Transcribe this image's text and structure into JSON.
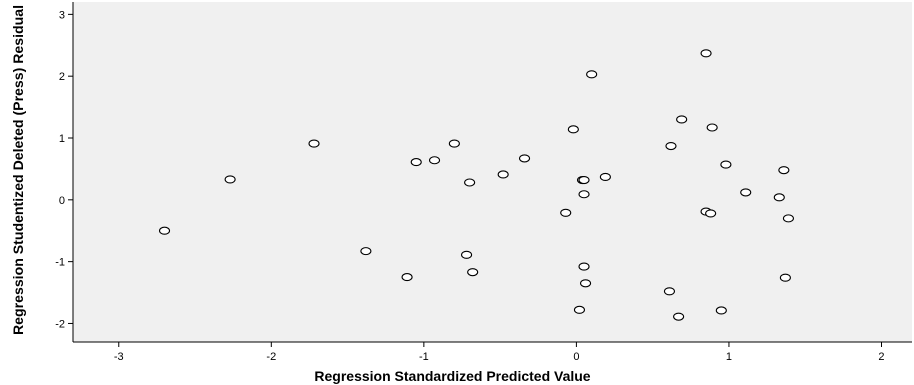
{
  "chart_data": {
    "type": "scatter",
    "title": "",
    "xlabel": "Regression Standardized Predicted Value",
    "ylabel": "Regression Studentized Deleted (Press) Residual",
    "xlim": [
      -3.3,
      2.2
    ],
    "ylim": [
      -2.3,
      3.2
    ],
    "xticks": [
      -3,
      -2,
      -1,
      0,
      1,
      2
    ],
    "yticks": [
      -2,
      -1,
      0,
      1,
      2,
      3
    ],
    "grid": false,
    "colors": {
      "plot_background": "#f0f0f0",
      "marker_stroke": "#000000",
      "marker_fill": "#ffffff"
    },
    "points": [
      {
        "x": -2.7,
        "y": -0.5
      },
      {
        "x": -2.27,
        "y": 0.33
      },
      {
        "x": -1.72,
        "y": 0.91
      },
      {
        "x": -1.38,
        "y": -0.83
      },
      {
        "x": -1.11,
        "y": -1.25
      },
      {
        "x": -1.05,
        "y": 0.61
      },
      {
        "x": -0.93,
        "y": 0.64
      },
      {
        "x": -0.8,
        "y": 0.91
      },
      {
        "x": -0.72,
        "y": -0.89
      },
      {
        "x": -0.7,
        "y": 0.28
      },
      {
        "x": -0.68,
        "y": -1.17
      },
      {
        "x": -0.48,
        "y": 0.41
      },
      {
        "x": -0.34,
        "y": 0.67
      },
      {
        "x": -0.07,
        "y": -0.21
      },
      {
        "x": -0.02,
        "y": 1.14
      },
      {
        "x": 0.02,
        "y": -1.78
      },
      {
        "x": 0.04,
        "y": 0.32
      },
      {
        "x": 0.05,
        "y": 0.32
      },
      {
        "x": 0.05,
        "y": 0.09
      },
      {
        "x": 0.05,
        "y": -1.08
      },
      {
        "x": 0.06,
        "y": -1.35
      },
      {
        "x": 0.1,
        "y": 2.03
      },
      {
        "x": 0.19,
        "y": 0.37
      },
      {
        "x": 0.61,
        "y": -1.48
      },
      {
        "x": 0.62,
        "y": 0.87
      },
      {
        "x": 0.67,
        "y": -1.89
      },
      {
        "x": 0.69,
        "y": 1.3
      },
      {
        "x": 0.85,
        "y": 2.37
      },
      {
        "x": 0.85,
        "y": -0.19
      },
      {
        "x": 0.88,
        "y": -0.22
      },
      {
        "x": 0.89,
        "y": 1.17
      },
      {
        "x": 0.95,
        "y": -1.79
      },
      {
        "x": 0.98,
        "y": 0.57
      },
      {
        "x": 1.11,
        "y": 0.12
      },
      {
        "x": 1.33,
        "y": 0.04
      },
      {
        "x": 1.36,
        "y": 0.48
      },
      {
        "x": 1.37,
        "y": -1.26
      },
      {
        "x": 1.39,
        "y": -0.3
      }
    ]
  }
}
